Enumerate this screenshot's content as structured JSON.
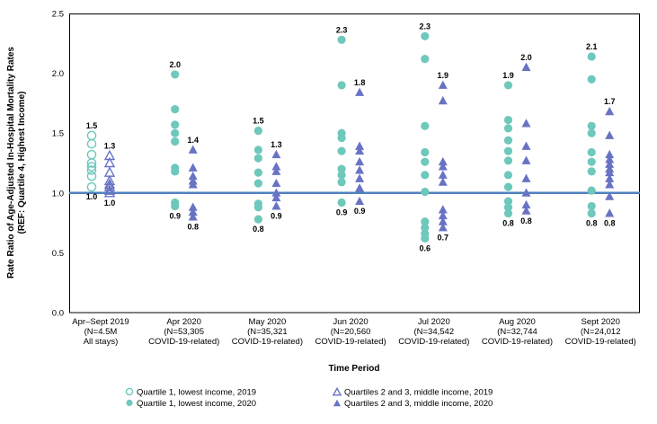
{
  "chart_data": {
    "type": "scatter",
    "title": "",
    "xlabel": "Time Period",
    "ylabel_line1": "Rate Ratio of Age-Adjusted In-Hospital Mortality Rates",
    "ylabel_line2": "(REF: Quartile 4, Highest Income)",
    "ylim": [
      0.0,
      2.5
    ],
    "yticks": [
      "0.0",
      "0.5",
      "1.0",
      "1.5",
      "2.0",
      "2.5"
    ],
    "reference_line": 1.0,
    "grid": "off",
    "legend_position": "bottom",
    "colors": {
      "quartile1": "#6EC8BC",
      "quartiles23": "#6973C4",
      "reference": "#4F81BD",
      "axis": "#000000"
    },
    "legend": [
      {
        "marker": "circle-open",
        "label": "Quartile 1, lowest income, 2019"
      },
      {
        "marker": "circle-filled",
        "label": "Quartile 1, lowest income, 2020"
      },
      {
        "marker": "triangle-open",
        "label": "Quartiles 2 and 3, middle income, 2019"
      },
      {
        "marker": "triangle-filled",
        "label": "Quartiles 2 and 3, middle income, 2020"
      }
    ],
    "columns": [
      {
        "axis_label": [
          "Apr–Sept 2019",
          "(N=4.5M",
          "All stays)"
        ],
        "circles": {
          "open": true,
          "values": [
            1.48,
            1.41,
            1.32,
            1.25,
            1.22,
            1.19,
            1.14,
            1.05
          ],
          "max_label": "1.5",
          "min_label": "1.0"
        },
        "triangles": {
          "open": true,
          "values": [
            1.31,
            1.25,
            1.17,
            1.1,
            1.07,
            1.05,
            1.02,
            1.0
          ],
          "max_label": "1.3",
          "min_label": "1.0"
        }
      },
      {
        "axis_label": [
          "Apr 2020",
          "(N=53,305",
          "COVID-19-related)"
        ],
        "circles": {
          "open": false,
          "values": [
            1.99,
            1.7,
            1.57,
            1.5,
            1.43,
            1.21,
            1.18,
            0.92,
            0.89
          ],
          "max_label": "2.0",
          "min_label": "0.9"
        },
        "triangles": {
          "open": false,
          "values": [
            1.36,
            1.21,
            1.14,
            1.1,
            1.07,
            0.88,
            0.84,
            0.8
          ],
          "max_label": "1.4",
          "min_label": "0.8"
        }
      },
      {
        "axis_label": [
          "May 2020",
          "(N=35,321",
          "COVID-19-related)"
        ],
        "circles": {
          "open": false,
          "values": [
            1.52,
            1.36,
            1.29,
            1.17,
            1.08,
            0.91,
            0.88,
            0.78
          ],
          "max_label": "1.5",
          "min_label": "0.8"
        },
        "triangles": {
          "open": false,
          "values": [
            1.32,
            1.22,
            1.18,
            1.08,
            1.0,
            0.96,
            0.89
          ],
          "max_label": "1.3",
          "min_label": "0.9"
        }
      },
      {
        "axis_label": [
          "Jun 2020",
          "(N=20,560",
          "COVID-19-related)"
        ],
        "circles": {
          "open": false,
          "values": [
            2.28,
            1.9,
            1.5,
            1.46,
            1.35,
            1.2,
            1.15,
            1.09,
            0.92
          ],
          "max_label": "2.3",
          "min_label": "0.9"
        },
        "triangles": {
          "open": false,
          "values": [
            1.84,
            1.39,
            1.35,
            1.26,
            1.19,
            1.12,
            1.04,
            0.93
          ],
          "max_label": "1.8",
          "min_label": "0.9"
        }
      },
      {
        "axis_label": [
          "Jul 2020",
          "(N=34,542",
          "COVID-19-related)"
        ],
        "circles": {
          "open": false,
          "values": [
            2.31,
            2.12,
            1.56,
            1.34,
            1.26,
            1.15,
            1.01,
            0.76,
            0.71,
            0.66,
            0.62
          ],
          "max_label": "2.3",
          "min_label": "0.6"
        },
        "triangles": {
          "open": false,
          "values": [
            1.9,
            1.77,
            1.26,
            1.22,
            1.15,
            1.09,
            0.86,
            0.81,
            0.76,
            0.71
          ],
          "max_label": "1.9",
          "min_label": "0.7"
        }
      },
      {
        "axis_label": [
          "Aug 2020",
          "(N=32,744",
          "COVID-19-related)"
        ],
        "circles": {
          "open": false,
          "values": [
            1.9,
            1.61,
            1.54,
            1.44,
            1.35,
            1.27,
            1.15,
            1.05,
            0.93,
            0.88,
            0.83
          ],
          "max_label": "1.9",
          "min_label": "0.8"
        },
        "triangles": {
          "open": false,
          "values": [
            2.05,
            1.58,
            1.39,
            1.27,
            1.12,
            1.0,
            0.9,
            0.85
          ],
          "max_label": "2.0",
          "min_label": "0.8"
        }
      },
      {
        "axis_label": [
          "Sept 2020",
          "(N=24,012",
          "COVID-19-related)"
        ],
        "circles": {
          "open": false,
          "values": [
            2.14,
            1.95,
            1.56,
            1.5,
            1.34,
            1.26,
            1.18,
            1.02,
            0.89,
            0.83
          ],
          "max_label": "2.1",
          "min_label": "0.8"
        },
        "triangles": {
          "open": false,
          "values": [
            1.68,
            1.48,
            1.32,
            1.28,
            1.24,
            1.2,
            1.17,
            1.12,
            1.07,
            0.97,
            0.83
          ],
          "max_label": "1.7",
          "min_label": "0.8"
        }
      }
    ]
  }
}
